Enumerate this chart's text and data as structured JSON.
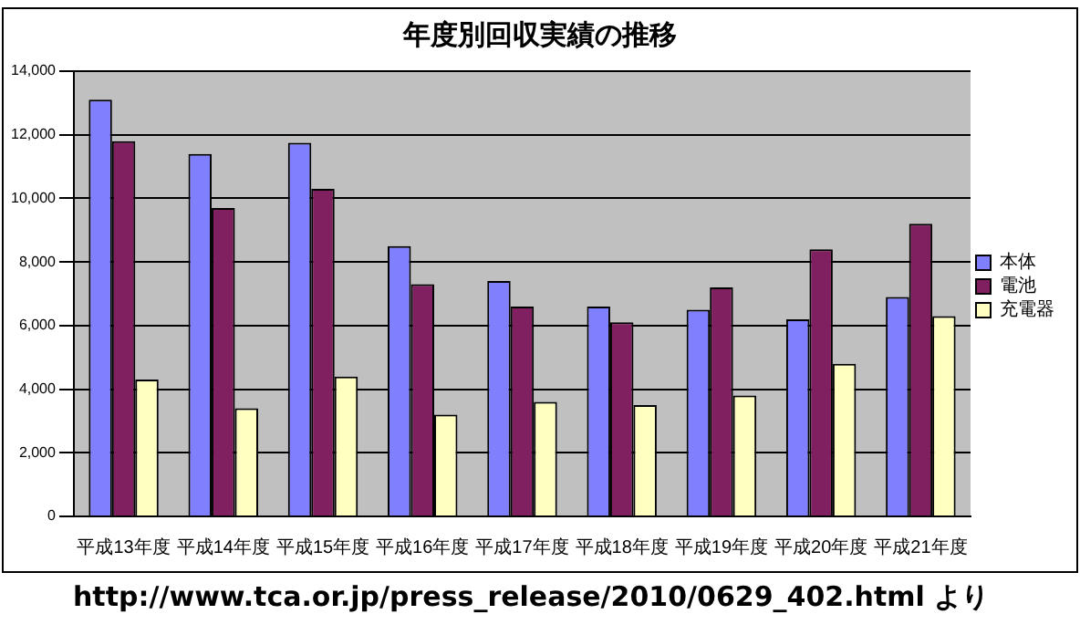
{
  "chart_data": {
    "type": "bar",
    "title": "年度別回収実績の推移",
    "categories": [
      "平成13年度",
      "平成14年度",
      "平成15年度",
      "平成16年度",
      "平成17年度",
      "平成18年度",
      "平成19年度",
      "平成20年度",
      "平成21年度"
    ],
    "series": [
      {
        "name": "本体",
        "color": "#8080ff",
        "values": [
          13100,
          11400,
          11750,
          8500,
          7400,
          6600,
          6500,
          6200,
          6900
        ]
      },
      {
        "name": "電池",
        "color": "#802060",
        "values": [
          11800,
          9700,
          10300,
          7300,
          6600,
          6100,
          7200,
          8400,
          9200
        ]
      },
      {
        "name": "充電器",
        "color": "#ffffc0",
        "values": [
          4300,
          3400,
          4400,
          3200,
          3600,
          3500,
          3800,
          4800,
          6300
        ]
      }
    ],
    "ylim": [
      0,
      14000
    ],
    "yticks": [
      {
        "value": 0,
        "label": "0"
      },
      {
        "value": 2000,
        "label": "2,000"
      },
      {
        "value": 4000,
        "label": "4,000"
      },
      {
        "value": 6000,
        "label": "6,000"
      },
      {
        "value": 8000,
        "label": "8,000"
      },
      {
        "value": 10000,
        "label": "10,000"
      },
      {
        "value": 12000,
        "label": "12,000"
      },
      {
        "value": 14000,
        "label": "14,000"
      }
    ],
    "grid": "y",
    "legend": "right",
    "annotations": [
      "http://www.tca.or.jp/press_release/2010/0629_402.html より"
    ]
  }
}
